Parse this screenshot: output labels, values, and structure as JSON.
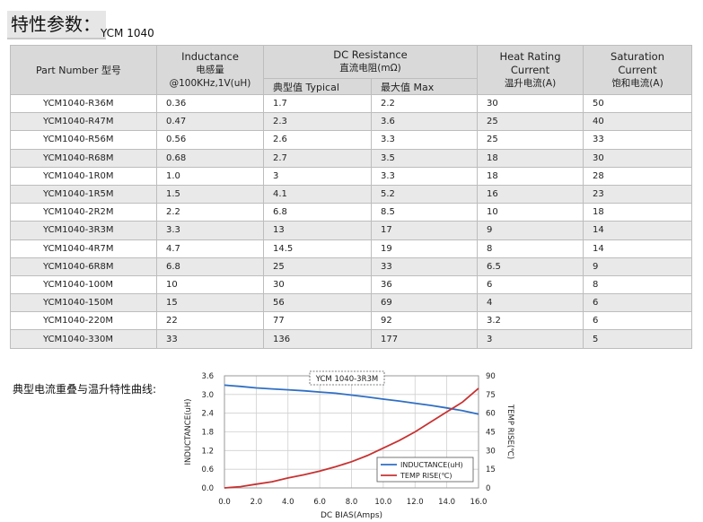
{
  "header": {
    "title": "特性参数：",
    "model": "YCM 1040"
  },
  "table": {
    "headers": {
      "part_number": "Part Number  型号",
      "inductance_l1": "Inductance",
      "inductance_l2": "电感量",
      "inductance_l3": "@100KHz,1V(uH)",
      "dcr_l1": "DC Resistance",
      "dcr_l2": "直流电阻(mΩ)",
      "dcr_typical": "典型值 Typical",
      "dcr_max": "最大值 Max",
      "heat_l1": "Heat Rating",
      "heat_l2": "Current",
      "heat_l3": "温升电流(A)",
      "sat_l1": "Saturation",
      "sat_l2": "Current",
      "sat_l3": "饱和电流(A)"
    },
    "rows": [
      [
        "YCM1040-R36M",
        "0.36",
        "1.7",
        "2.2",
        "30",
        "50"
      ],
      [
        "YCM1040-R47M",
        "0.47",
        "2.3",
        "3.6",
        "25",
        "40"
      ],
      [
        "YCM1040-R56M",
        "0.56",
        "2.6",
        "3.3",
        "25",
        "33"
      ],
      [
        "YCM1040-R68M",
        "0.68",
        "2.7",
        "3.5",
        "18",
        "30"
      ],
      [
        "YCM1040-1R0M",
        "1.0",
        "3",
        "3.3",
        "18",
        "28"
      ],
      [
        "YCM1040-1R5M",
        "1.5",
        "4.1",
        "5.2",
        "16",
        "23"
      ],
      [
        "YCM1040-2R2M",
        "2.2",
        "6.8",
        "8.5",
        "10",
        "18"
      ],
      [
        "YCM1040-3R3M",
        "3.3",
        "13",
        "17",
        "9",
        "14"
      ],
      [
        "YCM1040-4R7M",
        "4.7",
        "14.5",
        "19",
        "8",
        "14"
      ],
      [
        "YCM1040-6R8M",
        "6.8",
        "25",
        "33",
        "6.5",
        "9"
      ],
      [
        "YCM1040-100M",
        "10",
        "30",
        "36",
        "6",
        "8"
      ],
      [
        "YCM1040-150M",
        "15",
        "56",
        "69",
        "4",
        "6"
      ],
      [
        "YCM1040-220M",
        "22",
        "77",
        "92",
        "3.2",
        "6"
      ],
      [
        "YCM1040-330M",
        "33",
        "136",
        "177",
        "3",
        "5"
      ]
    ]
  },
  "chart_caption": "典型电流重叠与温升特性曲线:",
  "chart_data": {
    "type": "line",
    "title": "YCM 1040-3R3M",
    "xlabel": "DC BIAS(Amps)",
    "ylabel": "INDUCTANCE(uH)",
    "y2label": "TEMP RISE(℃)",
    "xlim": [
      0,
      16
    ],
    "ylim": [
      0,
      3.6
    ],
    "y2lim": [
      0,
      90
    ],
    "x_ticks": [
      "0.0",
      "2.0",
      "4.0",
      "6.0",
      "8.0",
      "10.0",
      "12.0",
      "14.0",
      "16.0"
    ],
    "y_ticks": [
      "0.0",
      "0.6",
      "1.2",
      "1.8",
      "2.4",
      "3.0",
      "3.6"
    ],
    "y2_ticks": [
      "0",
      "15",
      "30",
      "45",
      "60",
      "75",
      "90"
    ],
    "grid": true,
    "legend_position": "bottom-right",
    "series": [
      {
        "name": "INDUCTANCE(uH)",
        "axis": "left",
        "color": "#2f6fc4",
        "x": [
          0,
          1,
          2,
          3,
          4,
          5,
          6,
          7,
          8,
          9,
          10,
          11,
          12,
          13,
          14,
          15,
          16
        ],
        "y": [
          3.3,
          3.26,
          3.21,
          3.18,
          3.15,
          3.12,
          3.08,
          3.04,
          2.98,
          2.92,
          2.85,
          2.79,
          2.72,
          2.65,
          2.57,
          2.48,
          2.37
        ]
      },
      {
        "name": "TEMP RISE(℃)",
        "axis": "right",
        "color": "#c83232",
        "x": [
          0,
          1,
          2,
          3,
          4,
          5,
          6,
          7,
          8,
          9,
          10,
          11,
          12,
          13,
          14,
          15,
          16
        ],
        "y": [
          0,
          1,
          3,
          5,
          8,
          10.5,
          13.5,
          17,
          21,
          26,
          32,
          38,
          45,
          53,
          61,
          69,
          80
        ]
      }
    ]
  }
}
